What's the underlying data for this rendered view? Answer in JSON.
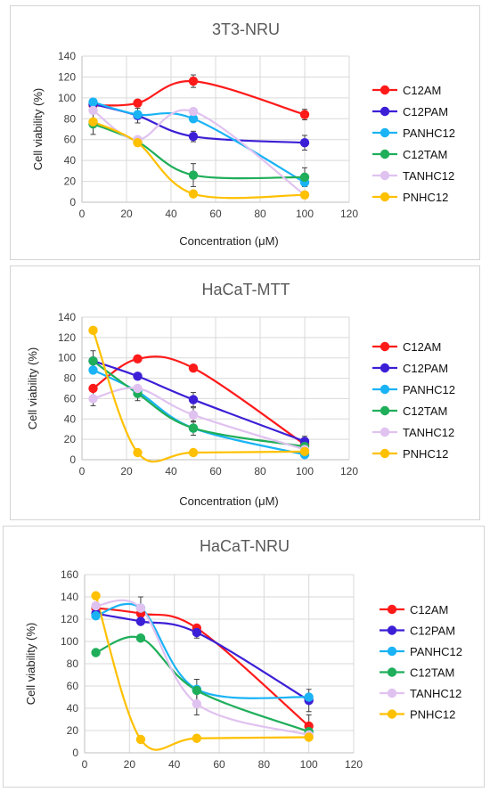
{
  "chart_data": [
    {
      "type": "line",
      "title": "3T3-NRU",
      "xlabel": "Concentration (μM)",
      "ylabel": "Cell viability (%)",
      "xlim": [
        0,
        120
      ],
      "ylim": [
        0,
        140
      ],
      "xticks": [
        "0",
        "20",
        "40",
        "60",
        "80",
        "100",
        "120"
      ],
      "yticks": [
        "0",
        "20",
        "40",
        "60",
        "80",
        "100",
        "120",
        "140"
      ],
      "x": [
        5,
        25,
        50,
        100
      ],
      "grid": true,
      "legend": "right",
      "series": [
        {
          "name": "C12AM",
          "color": "#ff1a1a",
          "values": [
            93,
            95,
            116,
            84
          ],
          "errors": [
            0,
            0,
            6,
            5
          ]
        },
        {
          "name": "C12PAM",
          "color": "#3b1fd6",
          "values": [
            94,
            83,
            63,
            57
          ],
          "errors": [
            0,
            7,
            5,
            7
          ]
        },
        {
          "name": "PANHC12",
          "color": "#1ab3f5",
          "values": [
            96,
            84,
            80,
            19
          ],
          "errors": [
            0,
            0,
            0,
            0
          ]
        },
        {
          "name": "C12TAM",
          "color": "#1fae5a",
          "values": [
            75,
            58,
            26,
            24
          ],
          "errors": [
            10,
            0,
            11,
            9
          ]
        },
        {
          "name": "TANHC12",
          "color": "#e0c2f0",
          "values": [
            88,
            60,
            87,
            7
          ],
          "errors": [
            0,
            0,
            0,
            0
          ]
        },
        {
          "name": "PNHC12",
          "color": "#ffc000",
          "values": [
            77,
            57,
            8,
            7
          ],
          "errors": [
            0,
            0,
            0,
            0
          ]
        }
      ]
    },
    {
      "type": "line",
      "title": "HaCaT-MTT",
      "xlabel": "Concentration (μM)",
      "ylabel": "Cell viability (%)",
      "xlim": [
        0,
        120
      ],
      "ylim": [
        0,
        140
      ],
      "xticks": [
        "0",
        "20",
        "40",
        "60",
        "80",
        "100",
        "120"
      ],
      "yticks": [
        "0",
        "20",
        "40",
        "60",
        "80",
        "100",
        "120",
        "140"
      ],
      "x": [
        5,
        25,
        50,
        100
      ],
      "grid": true,
      "legend": "right",
      "series": [
        {
          "name": "C12AM",
          "color": "#ff1a1a",
          "values": [
            70,
            99,
            90,
            15
          ],
          "errors": [
            0,
            0,
            0,
            0
          ]
        },
        {
          "name": "C12PAM",
          "color": "#3b1fd6",
          "values": [
            97,
            82,
            59,
            18
          ],
          "errors": [
            10,
            0,
            7,
            5
          ]
        },
        {
          "name": "PANHC12",
          "color": "#1ab3f5",
          "values": [
            88,
            67,
            31,
            5
          ],
          "errors": [
            0,
            0,
            0,
            0
          ]
        },
        {
          "name": "C12TAM",
          "color": "#1fae5a",
          "values": [
            97,
            65,
            31,
            13
          ],
          "errors": [
            0,
            7,
            7,
            0
          ]
        },
        {
          "name": "TANHC12",
          "color": "#e0c2f0",
          "values": [
            60,
            70,
            44,
            10
          ],
          "errors": [
            7,
            0,
            7,
            0
          ]
        },
        {
          "name": "PNHC12",
          "color": "#ffc000",
          "values": [
            127,
            7,
            7,
            8
          ],
          "errors": [
            0,
            0,
            0,
            0
          ]
        }
      ]
    },
    {
      "type": "line",
      "title": "HaCaT-NRU",
      "xlabel": "",
      "ylabel": "Cell viability (%)",
      "xlim": [
        0,
        120
      ],
      "ylim": [
        0,
        160
      ],
      "xticks": [
        "0",
        "20",
        "40",
        "60",
        "80",
        "100",
        "120"
      ],
      "yticks": [
        "0",
        "20",
        "40",
        "60",
        "80",
        "100",
        "120",
        "140",
        "160"
      ],
      "x": [
        5,
        25,
        50,
        100
      ],
      "grid": true,
      "legend": "right",
      "series": [
        {
          "name": "C12AM",
          "color": "#ff1a1a",
          "values": [
            130,
            125,
            112,
            24
          ],
          "errors": [
            0,
            0,
            0,
            10
          ]
        },
        {
          "name": "C12PAM",
          "color": "#3b1fd6",
          "values": [
            125,
            118,
            108,
            47
          ],
          "errors": [
            0,
            0,
            5,
            10
          ]
        },
        {
          "name": "PANHC12",
          "color": "#1ab3f5",
          "values": [
            123,
            130,
            57,
            50
          ],
          "errors": [
            0,
            0,
            0,
            0
          ]
        },
        {
          "name": "C12TAM",
          "color": "#1fae5a",
          "values": [
            90,
            103,
            56,
            19
          ],
          "errors": [
            0,
            0,
            10,
            0
          ]
        },
        {
          "name": "TANHC12",
          "color": "#e0c2f0",
          "values": [
            132,
            130,
            44,
            16
          ],
          "errors": [
            0,
            10,
            10,
            0
          ]
        },
        {
          "name": "PNHC12",
          "color": "#ffc000",
          "values": [
            141,
            12,
            13,
            14
          ],
          "errors": [
            0,
            0,
            0,
            0
          ]
        }
      ]
    }
  ]
}
